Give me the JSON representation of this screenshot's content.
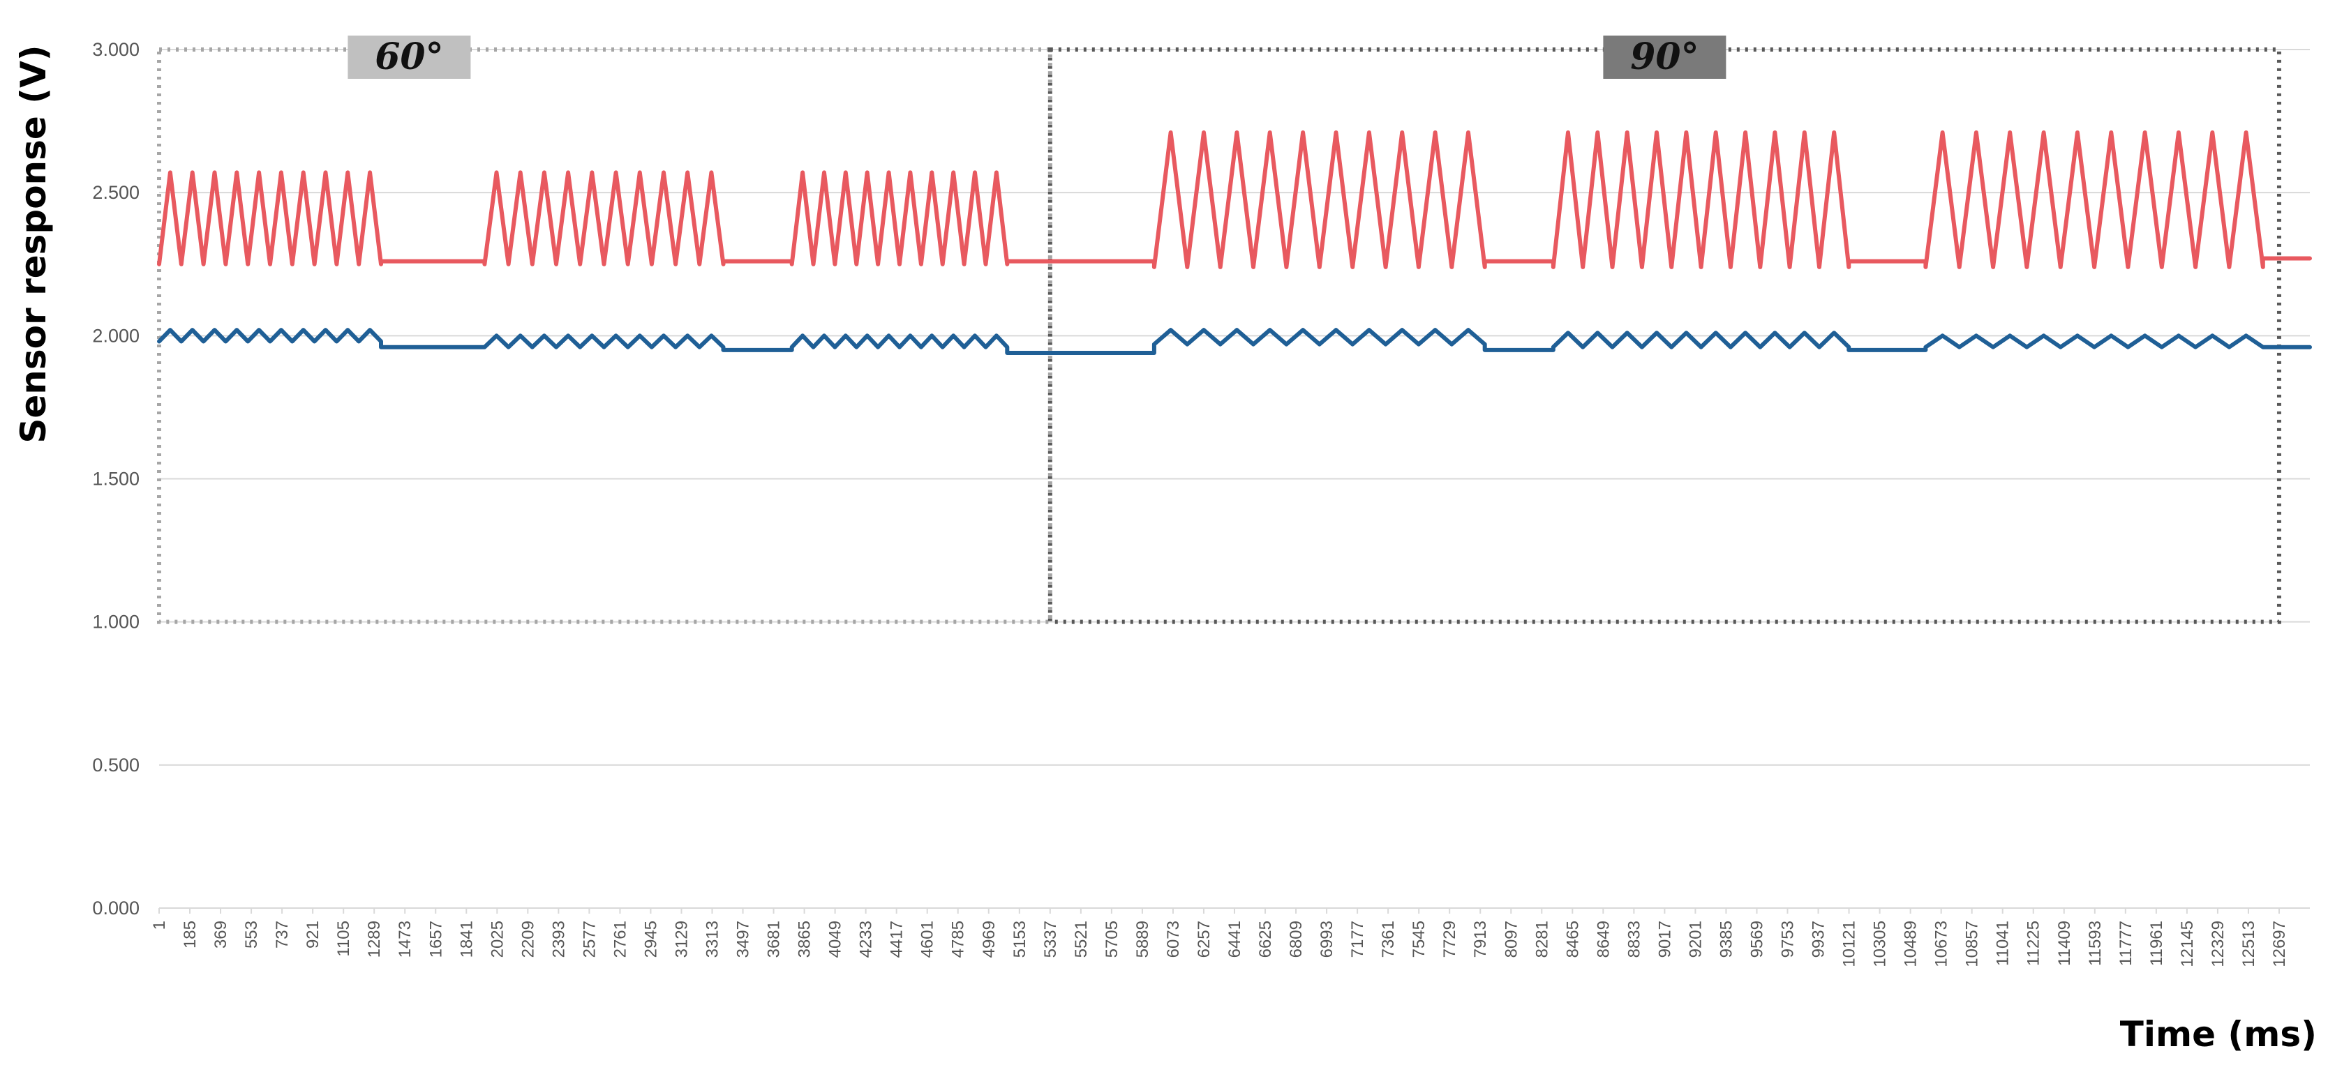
{
  "chart_data": {
    "type": "line",
    "title": "",
    "xlabel": "Time (ms)",
    "ylabel": "Sensor response (V)",
    "ylim": [
      0,
      3
    ],
    "xlim": [
      1,
      12881
    ],
    "grid": "horizontal",
    "legend": "none",
    "y_ticks": [
      "3.000",
      "2.500",
      "2.000",
      "1.500",
      "1.000",
      "0.500",
      "0.000"
    ],
    "y_tick_values": [
      3,
      2.5,
      2,
      1.5,
      1,
      0.5,
      0
    ],
    "x_ticks": [
      "1",
      "185",
      "369",
      "553",
      "737",
      "921",
      "1105",
      "1289",
      "1473",
      "1657",
      "1841",
      "2025",
      "2209",
      "2393",
      "2577",
      "2761",
      "2945",
      "3129",
      "3313",
      "3497",
      "3681",
      "3865",
      "4049",
      "4233",
      "4417",
      "4601",
      "4785",
      "4969",
      "5153",
      "5337",
      "5521",
      "5705",
      "5889",
      "6073",
      "6257",
      "6441",
      "6625",
      "6809",
      "6993",
      "7177",
      "7361",
      "7545",
      "7729",
      "7913",
      "8097",
      "8281",
      "8465",
      "8649",
      "8833",
      "9017",
      "9201",
      "9385",
      "9569",
      "9753",
      "9937",
      "10121",
      "10305",
      "10489",
      "10673",
      "10857",
      "11041",
      "11225",
      "11409",
      "11593",
      "11777",
      "11961",
      "12145",
      "12329",
      "12513",
      "12697"
    ],
    "regions": [
      {
        "label": "60°",
        "x_start": 1,
        "x_end": 5337,
        "y_low": 1.0,
        "y_high": 3.0,
        "color": "#a6a6a6",
        "label_bg": "#c0c0c0"
      },
      {
        "label": "90°",
        "x_start": 5337,
        "x_end": 12697,
        "y_low": 1.0,
        "y_high": 3.0,
        "color": "#595959",
        "label_bg": "#7a7a7a"
      }
    ],
    "series": [
      {
        "color": "#e8595f",
        "segments": [
          {
            "type": "osc",
            "x_start": 1,
            "x_end": 1330,
            "low": 2.25,
            "high": 2.57,
            "cycles": 10
          },
          {
            "type": "flat",
            "x_start": 1330,
            "x_end": 1950,
            "value": 2.26
          },
          {
            "type": "osc",
            "x_start": 1950,
            "x_end": 3380,
            "low": 2.25,
            "high": 2.57,
            "cycles": 10
          },
          {
            "type": "flat",
            "x_start": 3380,
            "x_end": 3790,
            "value": 2.26
          },
          {
            "type": "osc",
            "x_start": 3790,
            "x_end": 5080,
            "low": 2.25,
            "high": 2.57,
            "cycles": 10
          },
          {
            "type": "flat",
            "x_start": 5080,
            "x_end": 5960,
            "value": 2.26
          },
          {
            "type": "osc",
            "x_start": 5960,
            "x_end": 7940,
            "low": 2.24,
            "high": 2.71,
            "cycles": 10
          },
          {
            "type": "flat",
            "x_start": 7940,
            "x_end": 8350,
            "value": 2.26
          },
          {
            "type": "osc",
            "x_start": 8350,
            "x_end": 10120,
            "low": 2.24,
            "high": 2.71,
            "cycles": 10
          },
          {
            "type": "flat",
            "x_start": 10120,
            "x_end": 10580,
            "value": 2.26
          },
          {
            "type": "osc",
            "x_start": 10580,
            "x_end": 12600,
            "low": 2.24,
            "high": 2.71,
            "cycles": 10
          },
          {
            "type": "flat",
            "x_start": 12600,
            "x_end": 12881,
            "value": 2.27
          }
        ]
      },
      {
        "color": "#1f5f96",
        "segments": [
          {
            "type": "osc",
            "x_start": 1,
            "x_end": 1330,
            "low": 1.98,
            "high": 2.02,
            "cycles": 10
          },
          {
            "type": "flat",
            "x_start": 1330,
            "x_end": 1950,
            "value": 1.96
          },
          {
            "type": "osc",
            "x_start": 1950,
            "x_end": 3380,
            "low": 1.96,
            "high": 2.0,
            "cycles": 10
          },
          {
            "type": "flat",
            "x_start": 3380,
            "x_end": 3790,
            "value": 1.95
          },
          {
            "type": "osc",
            "x_start": 3790,
            "x_end": 5080,
            "low": 1.96,
            "high": 2.0,
            "cycles": 10
          },
          {
            "type": "flat",
            "x_start": 5080,
            "x_end": 5960,
            "value": 1.94
          },
          {
            "type": "osc",
            "x_start": 5960,
            "x_end": 7940,
            "low": 1.97,
            "high": 2.02,
            "cycles": 10
          },
          {
            "type": "flat",
            "x_start": 7940,
            "x_end": 8350,
            "value": 1.95
          },
          {
            "type": "osc",
            "x_start": 8350,
            "x_end": 10120,
            "low": 1.96,
            "high": 2.01,
            "cycles": 10
          },
          {
            "type": "flat",
            "x_start": 10120,
            "x_end": 10580,
            "value": 1.95
          },
          {
            "type": "osc",
            "x_start": 10580,
            "x_end": 12600,
            "low": 1.96,
            "high": 2.0,
            "cycles": 10
          },
          {
            "type": "flat",
            "x_start": 12600,
            "x_end": 12881,
            "value": 1.96
          }
        ]
      }
    ]
  }
}
